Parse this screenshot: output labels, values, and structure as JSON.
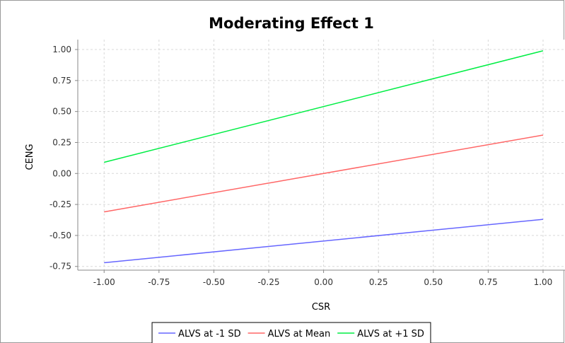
{
  "chart_data": {
    "type": "line",
    "title": "Moderating Effect 1",
    "xlabel": "CSR",
    "ylabel": "CENG",
    "xlim": [
      -1.12,
      1.1
    ],
    "ylim": [
      -0.78,
      1.08
    ],
    "x_ticks": [
      -1.0,
      -0.75,
      -0.5,
      -0.25,
      0.0,
      0.25,
      0.5,
      0.75,
      1.0
    ],
    "y_ticks": [
      -0.75,
      -0.5,
      -0.25,
      0.0,
      0.25,
      0.5,
      0.75,
      1.0
    ],
    "x_tick_labels": [
      "-1.00",
      "-0.75",
      "-0.50",
      "-0.25",
      "0.00",
      "0.25",
      "0.50",
      "0.75",
      "1.00"
    ],
    "y_tick_labels": [
      "-0.75",
      "-0.50",
      "-0.25",
      "0.00",
      "0.25",
      "0.50",
      "0.75",
      "1.00"
    ],
    "grid": true,
    "legend_position": "bottom",
    "series": [
      {
        "name": "ALVS at -1 SD",
        "color": "#6666ff",
        "x": [
          -1.0,
          1.0
        ],
        "y": [
          -0.72,
          -0.37
        ]
      },
      {
        "name": "ALVS at Mean",
        "color": "#ff6666",
        "x": [
          -1.0,
          1.0
        ],
        "y": [
          -0.31,
          0.31
        ]
      },
      {
        "name": "ALVS at +1 SD",
        "color": "#00ee44",
        "x": [
          -1.0,
          1.0
        ],
        "y": [
          0.09,
          0.99
        ]
      }
    ]
  }
}
